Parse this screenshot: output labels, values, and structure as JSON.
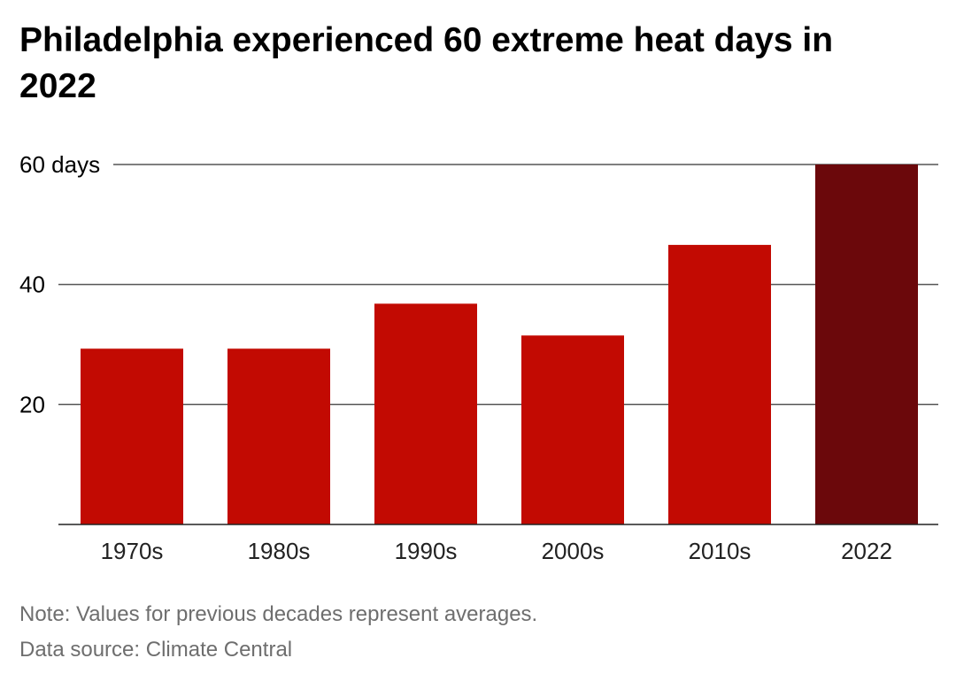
{
  "chart_data": {
    "type": "bar",
    "title": "Philadelphia experienced 60 extreme heat days in 2022",
    "categories": [
      "1970s",
      "1980s",
      "1990s",
      "2000s",
      "2010s",
      "2022"
    ],
    "values": [
      29.3,
      29.3,
      36.8,
      31.5,
      46.6,
      60
    ],
    "ylim": [
      0,
      60
    ],
    "yticks": [
      20,
      40,
      60
    ],
    "ytick_labels": [
      "20",
      "40",
      "60 days"
    ],
    "xlabel": "",
    "ylabel": "",
    "grid": true,
    "colors": {
      "bar": "#c20a02",
      "highlight_bar": "#6b080b",
      "grid": "#555555",
      "axis": "#222222"
    },
    "highlight_category": "2022"
  },
  "footer": {
    "note": "Note: Values for previous decades represent averages.",
    "source_label": "Data source: ",
    "source_name": "Climate Central"
  }
}
